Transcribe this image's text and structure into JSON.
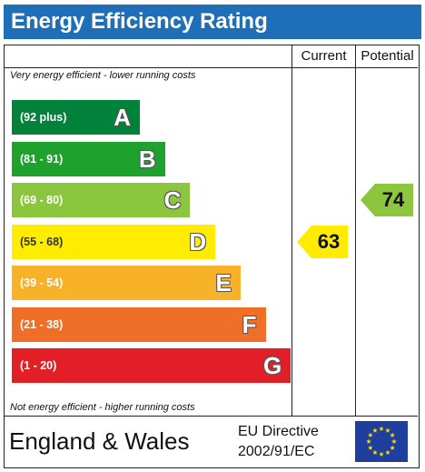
{
  "title": "Energy Efficiency Rating",
  "columns": {
    "current": "Current",
    "potential": "Potential"
  },
  "top_caption": "Very energy efficient - lower running costs",
  "bottom_caption": "Not energy efficient - higher running costs",
  "bands": [
    {
      "range": "(92 plus)",
      "letter": "A",
      "color": "#00823a"
    },
    {
      "range": "(81 - 91)",
      "letter": "B",
      "color": "#1fa12e"
    },
    {
      "range": "(69 - 80)",
      "letter": "C",
      "color": "#8cc63e"
    },
    {
      "range": "(55 - 68)",
      "letter": "D",
      "color": "#ffec00"
    },
    {
      "range": "(39 - 54)",
      "letter": "E",
      "color": "#f8b22a"
    },
    {
      "range": "(21 - 38)",
      "letter": "F",
      "color": "#ef6f28"
    },
    {
      "range": "(1 - 20)",
      "letter": "G",
      "color": "#e21f26"
    }
  ],
  "current": {
    "value": "63",
    "band": "D",
    "color": "#ffec00"
  },
  "potential": {
    "value": "74",
    "band": "C",
    "color": "#8cc63e"
  },
  "footer": {
    "country": "England & Wales",
    "directive_line1": "EU Directive",
    "directive_line2": "2002/91/EC",
    "flag_icon": "eu-flag-icon"
  }
}
